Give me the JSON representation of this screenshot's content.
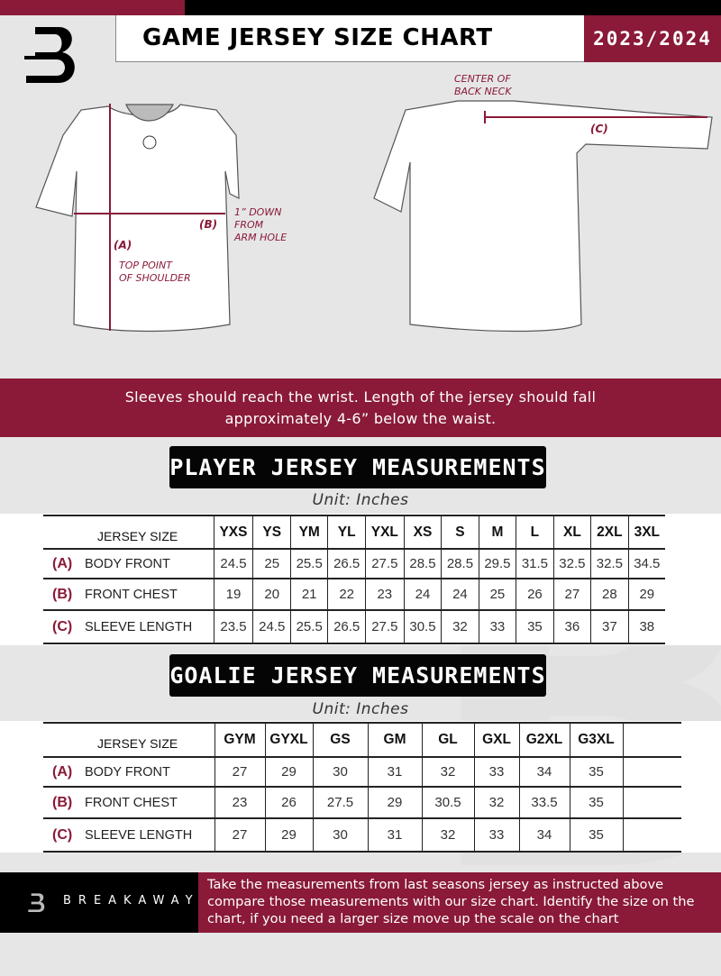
{
  "header": {
    "title": "GAME JERSEY SIZE CHART",
    "season": "2023/2024"
  },
  "diagram": {
    "back_neck": [
      "CENTER OF",
      "BACK NECK"
    ],
    "label_a": "(A)",
    "label_b": "(B)",
    "label_c": "(C)",
    "arm_hole": [
      "1” DOWN",
      "FROM",
      "ARM HOLE"
    ],
    "shoulder": [
      "TOP POINT",
      "OF SHOULDER"
    ]
  },
  "note": [
    "Sleeves should reach the wrist. Length of the jersey should fall",
    "approximately 4-6” below the waist."
  ],
  "player": {
    "title": "PLAYER JERSEY MEASUREMENTS",
    "unit": "Unit: Inches",
    "header_label": "JERSEY SIZE",
    "sizes": [
      "YXS",
      "YS",
      "YM",
      "YL",
      "YXL",
      "XS",
      "S",
      "M",
      "L",
      "XL",
      "2XL",
      "3XL"
    ],
    "rows": [
      {
        "code": "(A)",
        "label": "BODY FRONT",
        "values": [
          "24.5",
          "25",
          "25.5",
          "26.5",
          "27.5",
          "28.5",
          "28.5",
          "29.5",
          "31.5",
          "32.5",
          "32.5",
          "34.5"
        ]
      },
      {
        "code": "(B)",
        "label": "FRONT CHEST",
        "values": [
          "19",
          "20",
          "21",
          "22",
          "23",
          "24",
          "24",
          "25",
          "26",
          "27",
          "28",
          "29"
        ]
      },
      {
        "code": "(C)",
        "label": "SLEEVE LENGTH",
        "values": [
          "23.5",
          "24.5",
          "25.5",
          "26.5",
          "27.5",
          "30.5",
          "32",
          "33",
          "35",
          "36",
          "37",
          "38"
        ]
      }
    ]
  },
  "goalie": {
    "title": "GOALIE JERSEY MEASUREMENTS",
    "unit": "Unit: Inches",
    "header_label": "JERSEY SIZE",
    "sizes": [
      "GYM",
      "GYXL",
      "GS",
      "GM",
      "GL",
      "GXL",
      "G2XL",
      "G3XL",
      ""
    ],
    "rows": [
      {
        "code": "(A)",
        "label": "BODY FRONT",
        "values": [
          "27",
          "29",
          "30",
          "31",
          "32",
          "33",
          "34",
          "35",
          ""
        ]
      },
      {
        "code": "(B)",
        "label": "FRONT CHEST",
        "values": [
          "23",
          "26",
          "27.5",
          "29",
          "30.5",
          "32",
          "33.5",
          "35",
          ""
        ]
      },
      {
        "code": "(C)",
        "label": "SLEEVE LENGTH",
        "values": [
          "27",
          "29",
          "30",
          "31",
          "32",
          "33",
          "34",
          "35",
          ""
        ]
      }
    ]
  },
  "footer": {
    "brand": "BREAKAWAY",
    "text": "Take the measurements from last seasons jersey as instructed above compare those measurements  with our size chart. Identify the size on the chart, if you need a larger size move up the scale on the chart"
  },
  "colors": {
    "accent": "#8a1a37",
    "dark": "#000000",
    "background": "#e6e6e7"
  }
}
